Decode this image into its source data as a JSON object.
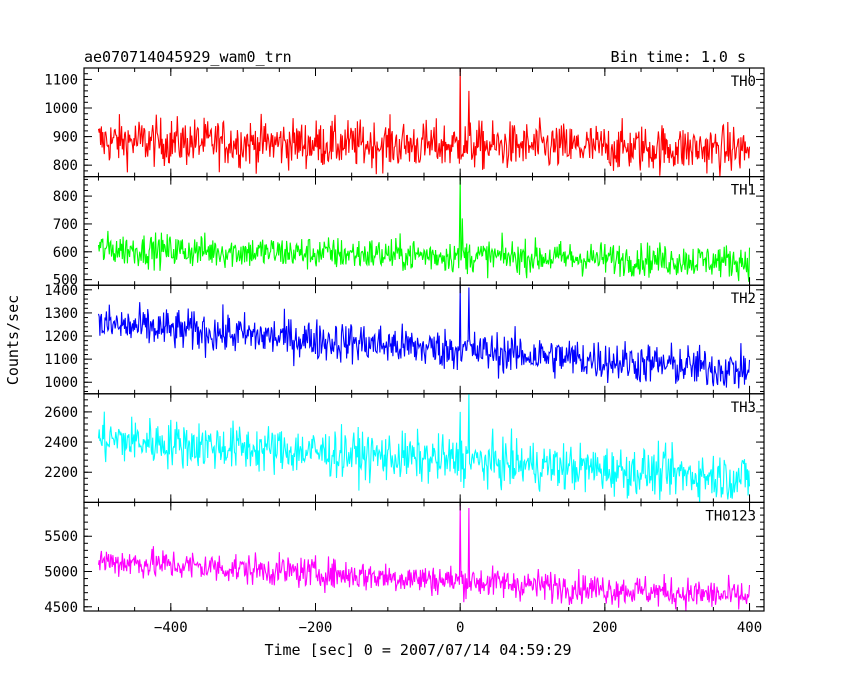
{
  "header": {
    "title": "ae070714045929_wam0_trn",
    "bin_time": "Bin time: 1.0 s"
  },
  "chart_data": {
    "type": "line",
    "xlabel": "Time [sec] 0 = 2007/07/14 04:59:29",
    "ylabel": "Counts/sec",
    "xlim": [
      -520,
      420
    ],
    "xticks": [
      -400,
      -200,
      0,
      200,
      400
    ],
    "x_range": [
      -500,
      400
    ],
    "bin_time_s": 1.0,
    "panels": [
      {
        "name": "TH0",
        "color": "#ff0000",
        "ylim": [
          760,
          1140
        ],
        "yticks": [
          800,
          900,
          1000,
          1100
        ],
        "trend": {
          "start": 885,
          "end": 855
        },
        "noise": 42,
        "spikes": [
          {
            "x": 0,
            "value": 1140
          },
          {
            "x": 12,
            "value": 1060
          }
        ]
      },
      {
        "name": "TH1",
        "color": "#00ff00",
        "ylim": [
          480,
          870
        ],
        "yticks": [
          500,
          600,
          700,
          800
        ],
        "trend": {
          "start": 610,
          "end": 565
        },
        "noise": 30,
        "spikes": [
          {
            "x": 0,
            "value": 870
          },
          {
            "x": 3,
            "value": 720
          }
        ]
      },
      {
        "name": "TH2",
        "color": "#0000ff",
        "ylim": [
          950,
          1420
        ],
        "yticks": [
          1000,
          1100,
          1200,
          1300,
          1400
        ],
        "trend": {
          "start": 1250,
          "end": 1050
        },
        "noise": 45,
        "spikes": [
          {
            "x": 0,
            "value": 1420
          },
          {
            "x": 12,
            "value": 1410
          }
        ]
      },
      {
        "name": "TH3",
        "color": "#00ffff",
        "ylim": [
          2000,
          2720
        ],
        "yticks": [
          2200,
          2400,
          2600
        ],
        "trend": {
          "start": 2420,
          "end": 2160
        },
        "noise": 80,
        "spikes": [
          {
            "x": 0,
            "value": 2600
          },
          {
            "x": 12,
            "value": 2720
          }
        ]
      },
      {
        "name": "TH0123",
        "color": "#ff00ff",
        "ylim": [
          4440,
          5980
        ],
        "yticks": [
          4500,
          5000,
          5500
        ],
        "trend": {
          "start": 5150,
          "end": 4640
        },
        "noise": 110,
        "spikes": [
          {
            "x": 0,
            "value": 5950
          },
          {
            "x": 12,
            "value": 5900
          }
        ]
      }
    ]
  }
}
